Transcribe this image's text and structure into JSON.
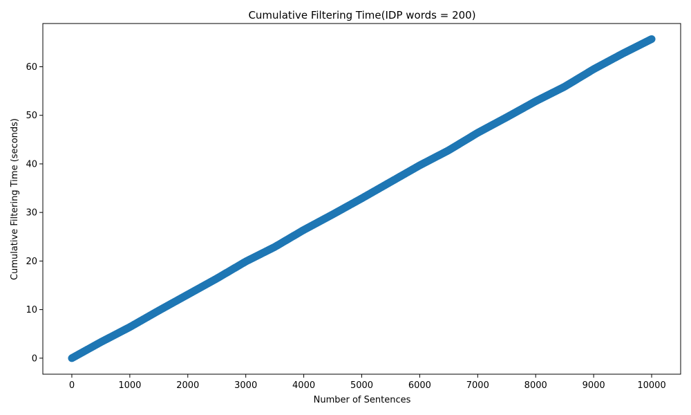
{
  "chart_data": {
    "type": "scatter",
    "title": "Cumulative Filtering Time(IDP words = 200)",
    "xlabel": "Number of Sentences",
    "ylabel": "Cumulative Filtering Time (seconds)",
    "xlim": [
      -500,
      10500
    ],
    "ylim": [
      -3.3,
      68.9
    ],
    "xticks": [
      0,
      1000,
      2000,
      3000,
      4000,
      5000,
      6000,
      7000,
      8000,
      9000,
      10000
    ],
    "yticks": [
      0,
      10,
      20,
      30,
      40,
      50,
      60
    ],
    "grid": false,
    "marker_color": "#1f77b4",
    "series": [
      {
        "x": [
          0,
          500,
          1000,
          1500,
          2000,
          2500,
          3000,
          3500,
          4000,
          4500,
          5000,
          5500,
          6000,
          6500,
          7000,
          7500,
          8000,
          8500,
          9000,
          9500,
          10000
        ],
        "y": [
          0,
          3.3,
          6.4,
          9.8,
          13.1,
          16.4,
          19.9,
          22.9,
          26.4,
          29.6,
          32.9,
          36.3,
          39.7,
          42.8,
          46.4,
          49.6,
          52.9,
          55.9,
          59.5,
          62.7,
          65.7
        ]
      }
    ]
  }
}
